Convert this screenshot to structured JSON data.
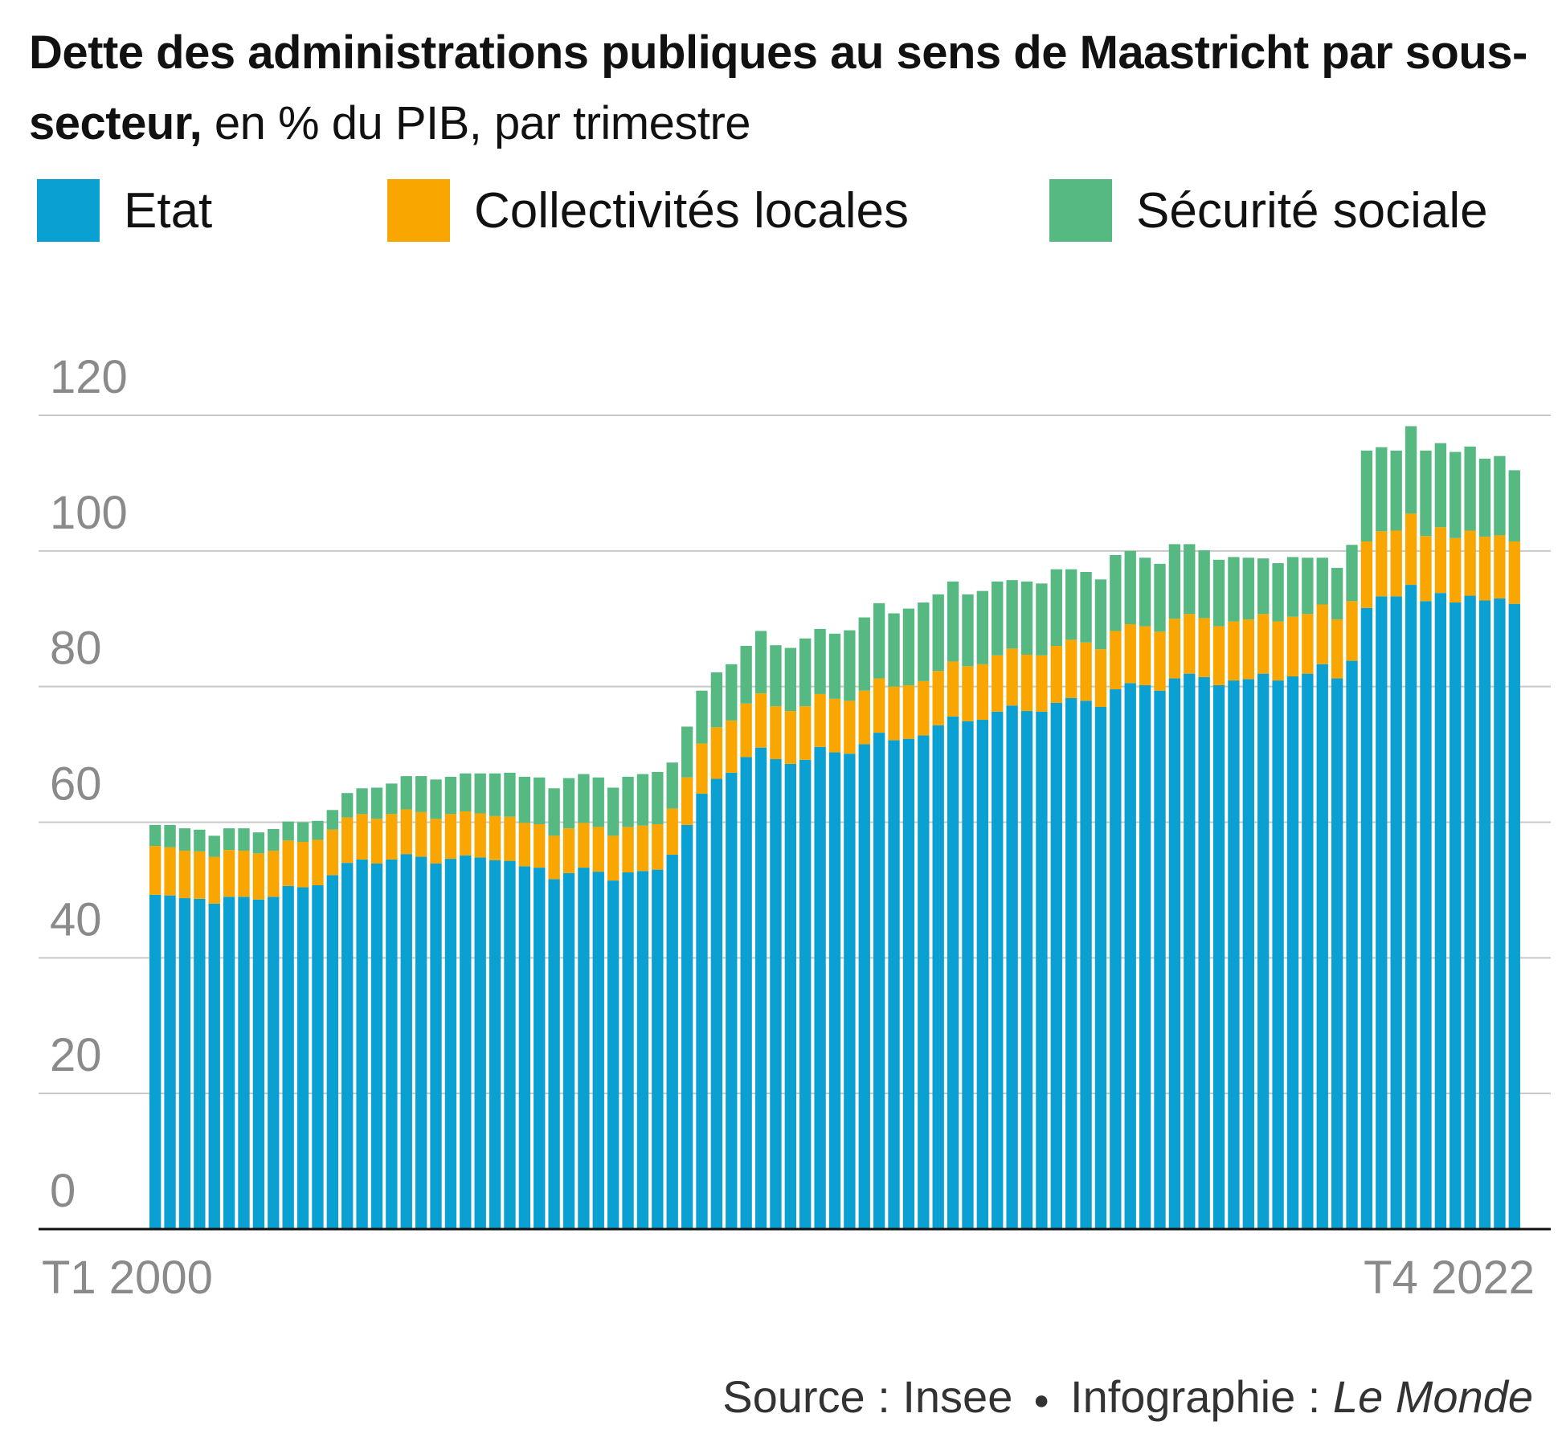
{
  "title": {
    "bold": "Dette des administrations publiques au sens de Maastricht par sous-secteur,",
    "light": " en % du PIB, par trimestre"
  },
  "legend": [
    {
      "label": "Etat",
      "color": "#0aa0d2"
    },
    {
      "label": "Collectivités locales",
      "color": "#f9a600"
    },
    {
      "label": "Sécurité sociale",
      "color": "#56b981"
    }
  ],
  "source": {
    "text": "Source : Insee",
    "separator": "●",
    "credit_prefix": "Infographie : ",
    "credit_italic": "Le Monde"
  },
  "chart_data": {
    "type": "bar",
    "stacked": true,
    "x_start_label": "T1 2000",
    "x_end_label": "T4 2022",
    "yticks": [
      0,
      20,
      40,
      60,
      80,
      100,
      120
    ],
    "ylim": [
      0,
      120
    ],
    "grid": true,
    "series": [
      {
        "name": "Etat",
        "color": "#0aa0d2",
        "values": [
          49.3,
          49.2,
          48.8,
          48.7,
          48.0,
          49.0,
          49.0,
          48.6,
          49.0,
          50.6,
          50.4,
          50.7,
          52.2,
          54.0,
          54.5,
          53.9,
          54.5,
          55.3,
          54.9,
          53.9,
          54.6,
          55.1,
          54.8,
          54.4,
          54.3,
          53.5,
          53.3,
          51.6,
          52.5,
          53.3,
          52.7,
          51.4,
          52.6,
          52.8,
          53.0,
          55.2,
          59.6,
          64.2,
          66.4,
          67.3,
          69.6,
          71.0,
          69.3,
          68.6,
          69.2,
          71.1,
          70.3,
          70.1,
          71.5,
          73.2,
          72.1,
          72.3,
          72.8,
          74.3,
          75.6,
          74.9,
          75.1,
          76.3,
          77.2,
          76.4,
          76.3,
          77.6,
          78.3,
          77.9,
          77.0,
          79.6,
          80.5,
          80.2,
          79.4,
          81.2,
          81.9,
          81.4,
          80.2,
          80.9,
          81.1,
          81.9,
          80.9,
          81.5,
          81.9,
          83.3,
          81.2,
          83.8,
          91.6,
          93.3,
          93.3,
          95.0,
          92.6,
          93.8,
          92.4,
          93.4,
          92.7,
          93.0,
          92.2
        ]
      },
      {
        "name": "Collectivités locales",
        "color": "#f9a600",
        "values": [
          7.2,
          7.1,
          7.0,
          7.0,
          6.9,
          6.9,
          6.8,
          6.8,
          6.8,
          6.7,
          6.7,
          6.7,
          6.7,
          6.7,
          6.7,
          6.6,
          6.7,
          6.6,
          6.6,
          6.6,
          6.6,
          6.5,
          6.5,
          6.5,
          6.5,
          6.4,
          6.4,
          6.4,
          6.6,
          6.6,
          6.6,
          6.6,
          6.7,
          6.7,
          6.7,
          6.8,
          7.0,
          7.4,
          7.6,
          7.7,
          7.9,
          8.0,
          7.8,
          7.8,
          7.9,
          7.8,
          7.9,
          7.8,
          7.9,
          8.0,
          7.9,
          7.9,
          8.0,
          8.0,
          8.1,
          8.1,
          8.2,
          8.3,
          8.4,
          8.3,
          8.3,
          8.4,
          8.6,
          8.6,
          8.5,
          8.6,
          8.7,
          8.7,
          8.7,
          8.8,
          8.8,
          8.7,
          8.7,
          8.7,
          8.8,
          8.8,
          8.7,
          8.8,
          8.8,
          8.8,
          8.7,
          8.8,
          9.8,
          9.6,
          9.7,
          10.5,
          9.6,
          9.7,
          9.5,
          9.6,
          9.4,
          9.3,
          9.2
        ]
      },
      {
        "name": "Sécurité sociale",
        "color": "#56b981",
        "values": [
          3.1,
          3.3,
          3.3,
          3.2,
          3.1,
          3.2,
          3.3,
          3.1,
          3.2,
          2.8,
          2.9,
          2.8,
          2.9,
          3.6,
          3.8,
          4.6,
          4.5,
          4.9,
          5.3,
          5.8,
          5.5,
          5.6,
          5.9,
          6.3,
          6.5,
          6.8,
          6.9,
          7.0,
          7.4,
          7.2,
          7.3,
          7.1,
          7.4,
          7.6,
          7.7,
          6.8,
          7.5,
          7.8,
          8.1,
          8.3,
          8.5,
          9.2,
          9.0,
          9.3,
          10.0,
          9.6,
          9.6,
          10.4,
          10.8,
          11.1,
          10.8,
          11.3,
          11.6,
          11.3,
          11.8,
          10.6,
          10.8,
          10.9,
          10.1,
          10.8,
          10.6,
          11.3,
          10.4,
          10.4,
          10.3,
          11.2,
          10.8,
          10.1,
          10.0,
          11.0,
          10.3,
          10.0,
          9.8,
          9.5,
          9.1,
          8.2,
          8.6,
          8.8,
          8.3,
          6.9,
          7.6,
          8.3,
          13.4,
          12.4,
          11.8,
          12.9,
          12.6,
          12.4,
          12.7,
          12.4,
          11.5,
          11.7,
          10.5
        ]
      }
    ]
  }
}
